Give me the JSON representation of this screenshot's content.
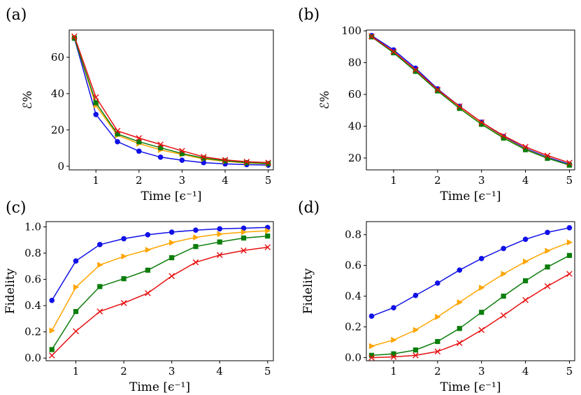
{
  "colors": {
    "blue": "#1010e8",
    "orange": "#ffa500",
    "green": "#0a7d0a",
    "red": "#e81010"
  },
  "chart_data": [
    {
      "id": "a",
      "panel_label": "(a)",
      "type": "line",
      "xlabel": "Time [ϵ⁻¹]",
      "ylabel": "ℰ%",
      "xlim": [
        0.38,
        5.12
      ],
      "ylim": [
        -2,
        75
      ],
      "xticks": [
        1,
        2,
        3,
        4,
        5
      ],
      "xtick_labels": [
        "1",
        "2",
        "3",
        "4",
        "5"
      ],
      "yticks": [
        0,
        20,
        40,
        60
      ],
      "ytick_labels": [
        "0",
        "20",
        "40",
        "60"
      ],
      "x": [
        0.5,
        1,
        1.5,
        2,
        2.5,
        3,
        3.5,
        4,
        4.5,
        5
      ],
      "series": [
        {
          "name": "blue",
          "marker": "circle",
          "values": [
            70.5,
            28.5,
            13.5,
            8.3,
            5.0,
            3.3,
            2.0,
            1.3,
            0.9,
            0.6
          ]
        },
        {
          "name": "orange",
          "marker": "triangle",
          "values": [
            71.0,
            33.5,
            17.0,
            12.5,
            9.0,
            6.5,
            4.0,
            2.7,
            1.8,
            1.3
          ]
        },
        {
          "name": "green",
          "marker": "square",
          "values": [
            70.5,
            35.0,
            17.8,
            13.5,
            10.2,
            7.0,
            4.5,
            3.0,
            2.0,
            1.5
          ]
        },
        {
          "name": "red",
          "marker": "x",
          "values": [
            71.5,
            38.0,
            19.5,
            15.5,
            12.0,
            8.5,
            5.2,
            3.5,
            2.5,
            2.0
          ]
        }
      ]
    },
    {
      "id": "b",
      "panel_label": "(b)",
      "type": "line",
      "xlabel": "Time [ϵ⁻¹]",
      "ylabel": "ℰ%",
      "xlim": [
        0.38,
        5.12
      ],
      "ylim": [
        12.5,
        100.5
      ],
      "xticks": [
        1,
        2,
        3,
        4,
        5
      ],
      "xtick_labels": [
        "1",
        "2",
        "3",
        "4",
        "5"
      ],
      "yticks": [
        20,
        40,
        60,
        80,
        100
      ],
      "ytick_labels": [
        "20",
        "40",
        "60",
        "80",
        "100"
      ],
      "x": [
        0.5,
        1,
        1.5,
        2,
        2.5,
        3,
        3.5,
        4,
        4.5,
        5
      ],
      "series": [
        {
          "name": "blue",
          "marker": "circle",
          "values": [
            97.0,
            88.0,
            76.5,
            63.5,
            52.5,
            42.5,
            33.5,
            26.0,
            20.5,
            16.0
          ]
        },
        {
          "name": "orange",
          "marker": "triangle",
          "values": [
            96.5,
            86.5,
            75.0,
            62.5,
            51.5,
            41.5,
            33.0,
            25.5,
            20.0,
            15.5
          ]
        },
        {
          "name": "green",
          "marker": "square",
          "values": [
            96.2,
            86.2,
            74.5,
            62.2,
            51.2,
            41.2,
            32.5,
            25.2,
            19.8,
            15.5
          ]
        },
        {
          "name": "red",
          "marker": "x",
          "values": [
            96.5,
            87.0,
            75.5,
            63.0,
            52.5,
            42.5,
            34.0,
            27.0,
            21.5,
            17.0
          ]
        }
      ]
    },
    {
      "id": "c",
      "panel_label": "(c)",
      "type": "line",
      "xlabel": "Time [ϵ⁻¹]",
      "ylabel": "Fidelity",
      "xlim": [
        0.38,
        5.12
      ],
      "ylim": [
        -0.02,
        1.04
      ],
      "xticks": [
        1,
        2,
        3,
        4,
        5
      ],
      "xtick_labels": [
        "1",
        "2",
        "3",
        "4",
        "5"
      ],
      "yticks": [
        0.0,
        0.2,
        0.4,
        0.6,
        0.8,
        1.0
      ],
      "ytick_labels": [
        "0.0",
        "0.2",
        "0.4",
        "0.6",
        "0.8",
        "1.0"
      ],
      "x": [
        0.5,
        1,
        1.5,
        2,
        2.5,
        3,
        3.5,
        4,
        4.5,
        5
      ],
      "series": [
        {
          "name": "blue",
          "marker": "circle",
          "values": [
            0.44,
            0.74,
            0.865,
            0.91,
            0.94,
            0.96,
            0.975,
            0.985,
            0.99,
            0.995
          ]
        },
        {
          "name": "orange",
          "marker": "triangle",
          "values": [
            0.21,
            0.54,
            0.71,
            0.775,
            0.825,
            0.88,
            0.92,
            0.945,
            0.96,
            0.97
          ]
        },
        {
          "name": "green",
          "marker": "square",
          "values": [
            0.065,
            0.355,
            0.545,
            0.605,
            0.67,
            0.765,
            0.85,
            0.885,
            0.915,
            0.93
          ]
        },
        {
          "name": "red",
          "marker": "x",
          "values": [
            0.02,
            0.205,
            0.355,
            0.42,
            0.495,
            0.625,
            0.73,
            0.785,
            0.82,
            0.845
          ]
        }
      ]
    },
    {
      "id": "d",
      "panel_label": "(d)",
      "type": "line",
      "xlabel": "Time [ϵ⁻¹]",
      "ylabel": "Fidelity",
      "xlim": [
        0.38,
        5.12
      ],
      "ylim": [
        -0.02,
        0.885
      ],
      "xticks": [
        1,
        2,
        3,
        4,
        5
      ],
      "xtick_labels": [
        "1",
        "2",
        "3",
        "4",
        "5"
      ],
      "yticks": [
        0.0,
        0.2,
        0.4,
        0.6,
        0.8
      ],
      "ytick_labels": [
        "0.0",
        "0.2",
        "0.4",
        "0.6",
        "0.8"
      ],
      "x": [
        0.5,
        1,
        1.5,
        2,
        2.5,
        3,
        3.5,
        4,
        4.5,
        5
      ],
      "series": [
        {
          "name": "blue",
          "marker": "circle",
          "values": [
            0.27,
            0.325,
            0.405,
            0.485,
            0.57,
            0.645,
            0.71,
            0.77,
            0.815,
            0.845
          ]
        },
        {
          "name": "orange",
          "marker": "triangle",
          "values": [
            0.075,
            0.115,
            0.18,
            0.265,
            0.36,
            0.455,
            0.545,
            0.625,
            0.695,
            0.75
          ]
        },
        {
          "name": "green",
          "marker": "square",
          "values": [
            0.015,
            0.025,
            0.05,
            0.105,
            0.19,
            0.295,
            0.4,
            0.5,
            0.59,
            0.665
          ]
        },
        {
          "name": "red",
          "marker": "x",
          "values": [
            0.0,
            0.005,
            0.015,
            0.04,
            0.095,
            0.18,
            0.275,
            0.375,
            0.465,
            0.545
          ]
        }
      ]
    }
  ]
}
